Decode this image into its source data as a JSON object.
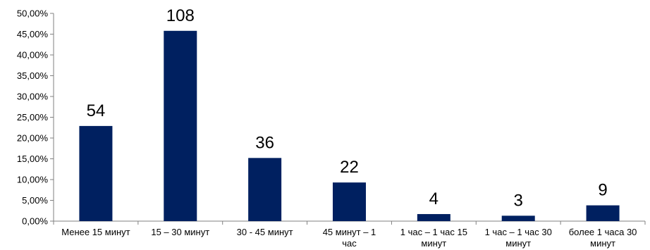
{
  "chart_data": {
    "type": "bar",
    "categories": [
      [
        "Менее 15 минут"
      ],
      [
        "15 – 30 минут"
      ],
      [
        "30 - 45 минут"
      ],
      [
        "45 минут – 1",
        "час"
      ],
      [
        "1 час – 1 час 15",
        "минут"
      ],
      [
        "1 час – 1 час 30",
        "минут"
      ],
      [
        "более 1 часа 30",
        "минут"
      ]
    ],
    "values": [
      22.9,
      45.8,
      15.2,
      9.3,
      1.7,
      1.3,
      3.8
    ],
    "data_labels": [
      "54",
      "108",
      "36",
      "22",
      "4",
      "3",
      "9"
    ],
    "y_ticks": [
      "0,00%",
      "5,00%",
      "10,00%",
      "15,00%",
      "20,00%",
      "25,00%",
      "30,00%",
      "35,00%",
      "40,00%",
      "45,00%",
      "50,00%"
    ],
    "ylim": [
      0,
      50
    ],
    "title": "",
    "xlabel": "",
    "ylabel": "",
    "grid": false,
    "legend": "none",
    "bar_color": "#002060",
    "axis_color": "#808080"
  }
}
